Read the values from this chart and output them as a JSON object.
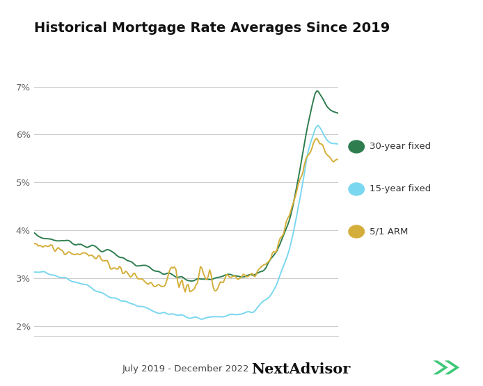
{
  "title": "Historical Mortgage Rate Averages Since 2019",
  "xlabel": "July 2019 - December 2022",
  "ylim": [
    1.8,
    7.6
  ],
  "yticks": [
    2,
    3,
    4,
    5,
    6,
    7
  ],
  "ytick_labels": [
    "2%",
    "3%",
    "4%",
    "5%",
    "6%",
    "7%"
  ],
  "color_30yr": "#2e7d4f",
  "color_15yr": "#7ad7f0",
  "color_arm": "#d4ae3a",
  "legend_labels": [
    "30-year fixed",
    "15-year fixed",
    "5/1 ARM"
  ],
  "background_color": "#ffffff",
  "n_points": 200,
  "title_fontsize": 14,
  "linewidth": 1.4,
  "grid_color": "#cccccc",
  "tick_color": "#666666",
  "logo_color": "#3dc878",
  "logo_arrow_color": "#3dc878"
}
